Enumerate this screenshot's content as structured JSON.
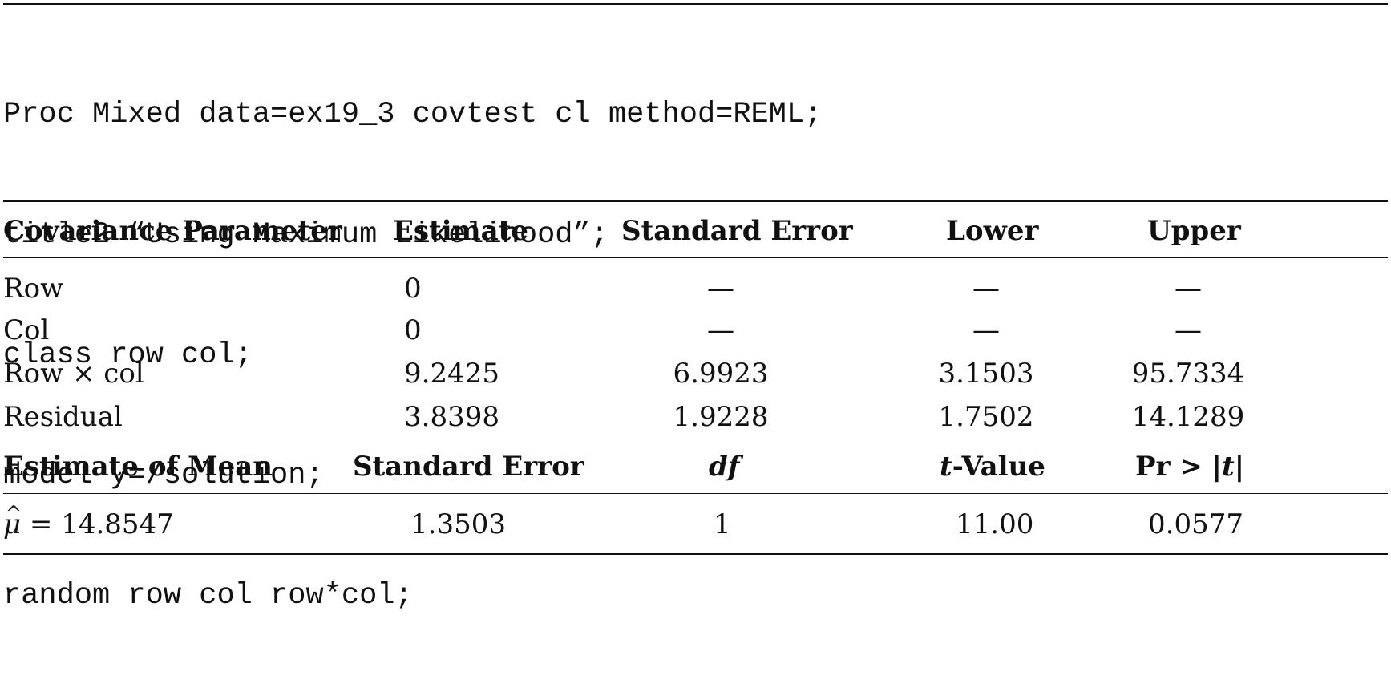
{
  "code": {
    "lines": [
      "Proc Mixed data=ex19_3 covtest cl method=REML;",
      "title2 “Using Maximum Likelihood”;",
      "class row col;",
      "model y=/solution;",
      "random row col row*col;"
    ]
  },
  "cov_table": {
    "headers": [
      "Covariance Parameter",
      "Estimate",
      "Standard Error",
      "Lower",
      "Upper"
    ],
    "rows": [
      {
        "param": "Row",
        "estimate": "0",
        "std_error": "—",
        "lower": "—",
        "upper": "—"
      },
      {
        "param": "Col",
        "estimate": "0",
        "std_error": "—",
        "lower": "—",
        "upper": "—"
      },
      {
        "param": "Row × col",
        "estimate": "9.2425",
        "std_error": "6.9923",
        "lower": "3.1503",
        "upper": "95.7334"
      },
      {
        "param": "Residual",
        "estimate": "3.8398",
        "std_error": "1.9228",
        "lower": "1.7502",
        "upper": "14.1289"
      }
    ]
  },
  "mean_table": {
    "headers": {
      "estimate_of_mean": "Estimate of Mean",
      "std_error": "Standard Error",
      "df": "df",
      "t_value_t": "t",
      "t_value_rest": "-Value",
      "pr_prefix": "Pr > |",
      "pr_t": "t",
      "pr_suffix": "|"
    },
    "row": {
      "mu_symbol": "μ",
      "mu_value": " = 14.8547",
      "std_error": "1.3503",
      "df": "1",
      "t_value": "11.00",
      "pr": "0.0577"
    }
  }
}
